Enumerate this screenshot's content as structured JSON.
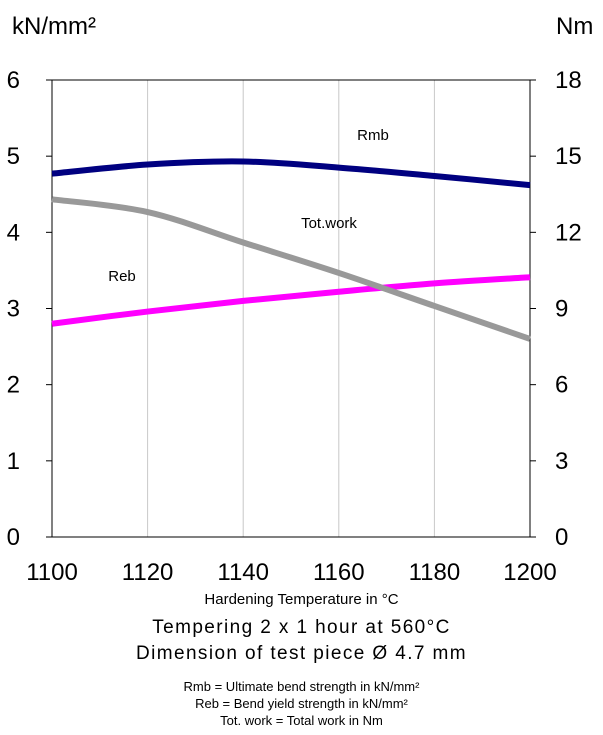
{
  "chart_data": {
    "type": "line",
    "left_axis_unit": "kN/mm²",
    "right_axis_unit": "Nm",
    "x": [
      1100,
      1120,
      1140,
      1160,
      1180,
      1200
    ],
    "xlim": [
      1100,
      1200
    ],
    "ylim_left": [
      0,
      6
    ],
    "ylim_right": [
      0,
      18
    ],
    "x_ticks": [
      "1100",
      "1120",
      "1140",
      "1160",
      "1180",
      "1200"
    ],
    "y_ticks_left": [
      "0",
      "1",
      "2",
      "3",
      "4",
      "5",
      "6"
    ],
    "y_ticks_right": [
      "0",
      "3",
      "6",
      "9",
      "12",
      "15",
      "18"
    ],
    "grid": "vertical",
    "series": [
      {
        "name": "Rmb",
        "axis": "left",
        "color": "#000080",
        "values": [
          4.77,
          4.89,
          4.93,
          4.85,
          4.74,
          4.62
        ]
      },
      {
        "name": "Reb",
        "axis": "left",
        "color": "#ff00ff",
        "values": [
          2.8,
          2.96,
          3.1,
          3.22,
          3.33,
          3.41
        ]
      },
      {
        "name": "Tot.work",
        "axis": "right",
        "color": "#999999",
        "values": [
          13.3,
          12.8,
          11.6,
          10.4,
          9.1,
          7.8
        ]
      }
    ],
    "xlabel": "Hardening Temperature in °C",
    "caption_line1": "Tempering 2 x 1 hour at 560°C",
    "caption_line2": "Dimension of test piece Ø 4.7 mm",
    "legend_lines": [
      "Rmb = Ultimate bend strength in kN/mm²",
      "Reb =   Bend yield strength in kN/mm²",
      "Tot. work = Total work in Nm"
    ]
  }
}
